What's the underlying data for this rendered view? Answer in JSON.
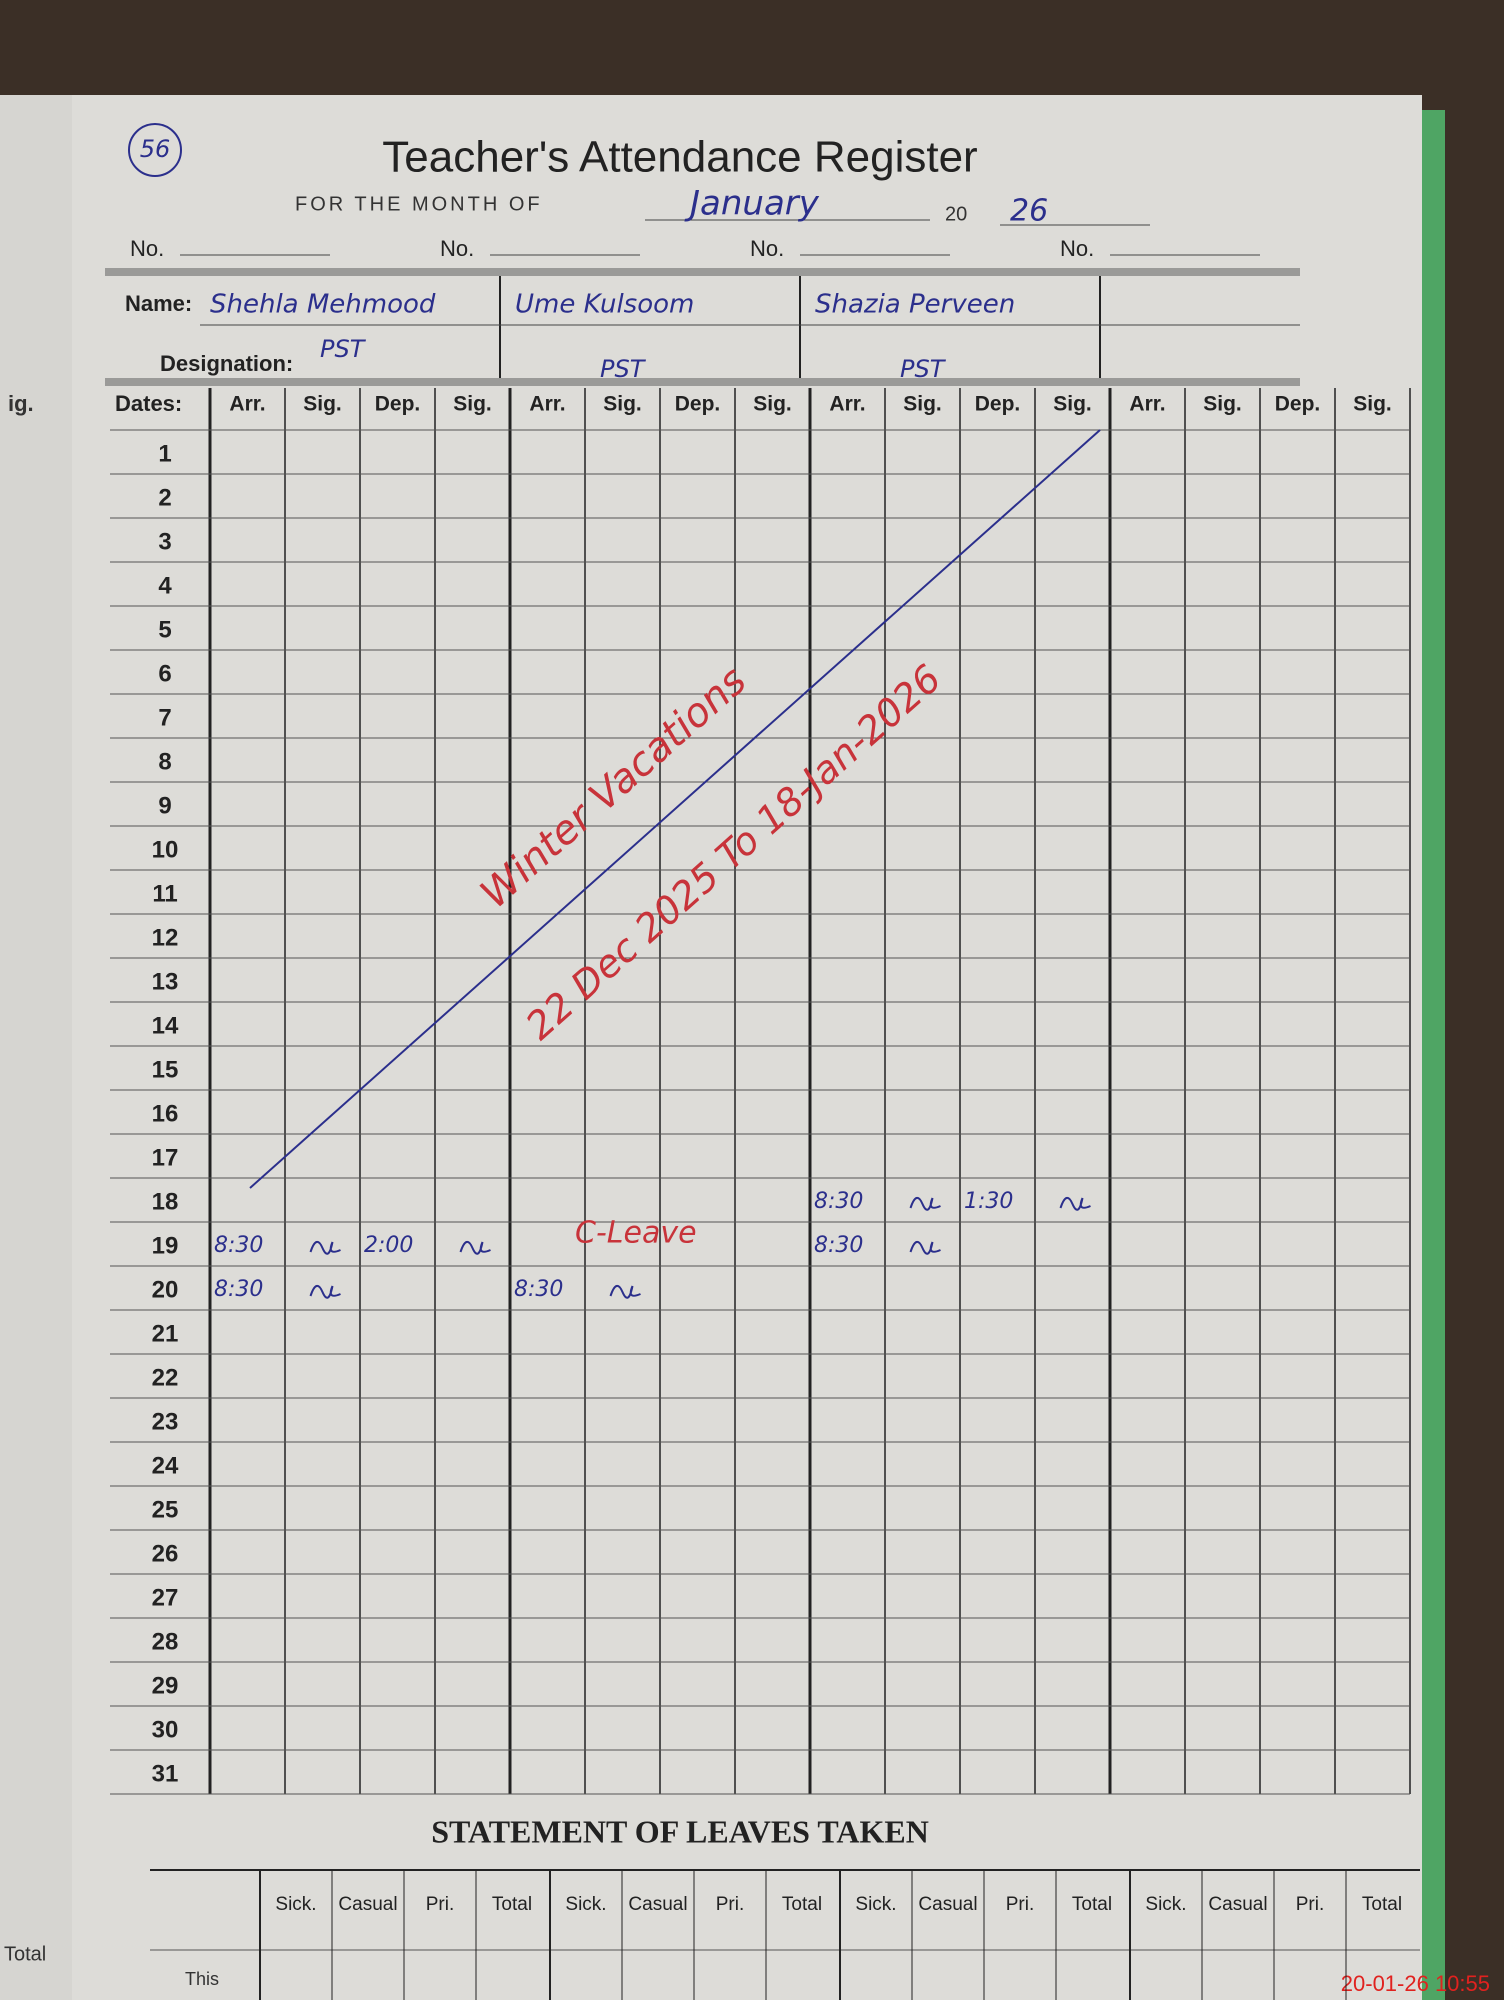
{
  "header": {
    "page_number": "56",
    "title": "Teacher's Attendance Register",
    "month_label": "FOR THE MONTH OF",
    "month": "January",
    "year_prefix": "20",
    "year": "26",
    "number_label": "No."
  },
  "labels": {
    "name": "Name:",
    "designation": "Designation:",
    "dates": "Dates:"
  },
  "column_headers": [
    "Arr.",
    "Sig.",
    "Dep.",
    "Sig."
  ],
  "teachers": [
    {
      "name": "Shehla Mehmood",
      "designation": "PST",
      "attendance": {
        "19": {
          "arr": "8:30",
          "dep": "2:00"
        },
        "20": {
          "arr": "8:30"
        }
      }
    },
    {
      "name": "Ume Kulsoom",
      "designation": "PST",
      "attendance": {
        "19": {
          "note": "C-Leave"
        },
        "20": {
          "arr": "8:30"
        }
      }
    },
    {
      "name": "Shazia Perveen",
      "designation": "PST",
      "attendance": {
        "18": {
          "arr": "8:30",
          "dep": "1:30"
        },
        "19": {
          "arr": "8:30"
        }
      }
    }
  ],
  "dates": [
    1,
    2,
    3,
    4,
    5,
    6,
    7,
    8,
    9,
    10,
    11,
    12,
    13,
    14,
    15,
    16,
    17,
    18,
    19,
    20,
    21,
    22,
    23,
    24,
    25,
    26,
    27,
    28,
    29,
    30,
    31
  ],
  "annotation": {
    "title": "Winter Vacations",
    "period": "22 Dec 2025 To 18-Jan-2026"
  },
  "statement": {
    "title": "STATEMENT OF LEAVES TAKEN",
    "headers": [
      "Sick.",
      "Casual",
      "Pri.",
      "Total"
    ],
    "row_label": "This"
  },
  "left_page": {
    "labels": [
      "ig.",
      "Total"
    ]
  },
  "timestamp": "20-01-26 10:55"
}
